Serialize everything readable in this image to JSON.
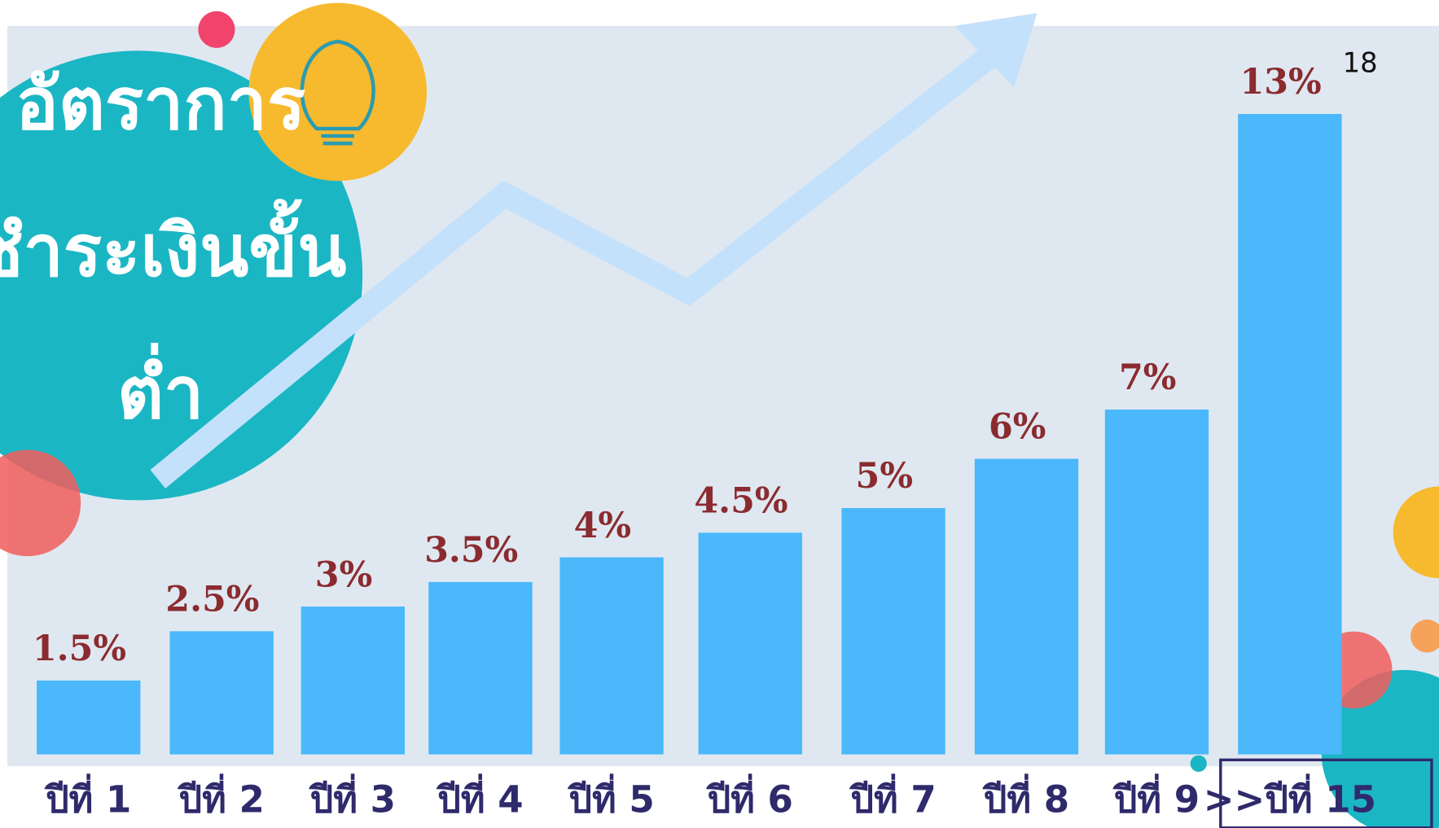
{
  "chart_data": {
    "type": "bar",
    "title_lines": [
      "อัตราการ",
      "ชำระเงินขั้น",
      "ต่ำ"
    ],
    "page_number": "18",
    "categories": [
      "ปีที่ 1",
      "ปีที่ 2",
      "ปีที่ 3",
      "ปีที่ 4",
      "ปีที่ 5",
      "ปีที่ 6",
      "ปีที่ 7",
      "ปีที่ 8",
      "ปีที่ 9",
      ">>ปีที่ 15"
    ],
    "values": [
      1.5,
      2.5,
      3,
      3.5,
      4,
      4.5,
      5,
      6,
      7,
      13
    ],
    "value_labels": [
      "1.5%",
      "2.5%",
      "3%",
      "3.5%",
      "4%",
      "4.5%",
      "5%",
      "6%",
      "7%",
      "13%"
    ],
    "color": "#4ab8fb"
  }
}
